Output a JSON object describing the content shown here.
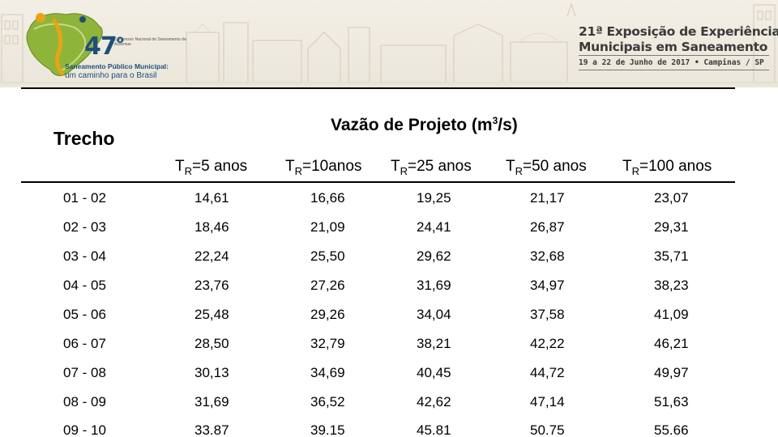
{
  "header": {
    "logo": {
      "edition": "47",
      "edition_suffix": "o",
      "small_text": "Congresso Nacional de Saneamento da Assemae",
      "tagline_line1": "Saneamento Público Municipal:",
      "tagline_line2": "um caminho para o Brasil",
      "colors": {
        "primary": "#1f4e79",
        "accent": "#e8a317",
        "green": "#6a9a2b"
      }
    },
    "event": {
      "title_line1": "21ª Exposição de Experiências",
      "title_line2": "Municipais em Saneamento",
      "date_line": "19 a 22 de Junho de 2017 • Campinas / SP"
    }
  },
  "table": {
    "row_header": "Trecho",
    "group_header": {
      "text": "Vazão de Projeto (m",
      "sup": "3",
      "suffix": "/s)"
    },
    "columns": [
      {
        "prefix": "T",
        "sub": "R",
        "suffix": "=5 anos"
      },
      {
        "prefix": "T",
        "sub": "R",
        "suffix": "=10anos"
      },
      {
        "prefix": "T",
        "sub": "R",
        "suffix": "=25 anos"
      },
      {
        "prefix": "T",
        "sub": "R",
        "suffix": "=50 anos"
      },
      {
        "prefix": "T",
        "sub": "R",
        "suffix": "=100 anos"
      }
    ],
    "rows": [
      {
        "trecho": "01 - 02",
        "values": [
          "14,61",
          "16,66",
          "19,25",
          "21,17",
          "23,07"
        ]
      },
      {
        "trecho": "02 - 03",
        "values": [
          "18,46",
          "21,09",
          "24,41",
          "26,87",
          "29,31"
        ]
      },
      {
        "trecho": "03 - 04",
        "values": [
          "22,24",
          "25,50",
          "29,62",
          "32,68",
          "35,71"
        ]
      },
      {
        "trecho": "04 - 05",
        "values": [
          "23,76",
          "27,26",
          "31,69",
          "34,97",
          "38,23"
        ]
      },
      {
        "trecho": "05 - 06",
        "values": [
          "25,48",
          "29,26",
          "34,04",
          "37,58",
          "41,09"
        ]
      },
      {
        "trecho": "06 - 07",
        "values": [
          "28,50",
          "32,79",
          "38,21",
          "42,22",
          "46,21"
        ]
      },
      {
        "trecho": "07 - 08",
        "values": [
          "30,13",
          "34,69",
          "40,45",
          "44,72",
          "49,97"
        ]
      },
      {
        "trecho": "08 - 09",
        "values": [
          "31,69",
          "36,52",
          "42,62",
          "47,14",
          "51,63"
        ]
      },
      {
        "trecho": "09 - 10",
        "values": [
          "33.87",
          "39.15",
          "45.81",
          "50.75",
          "55.66"
        ]
      }
    ]
  }
}
